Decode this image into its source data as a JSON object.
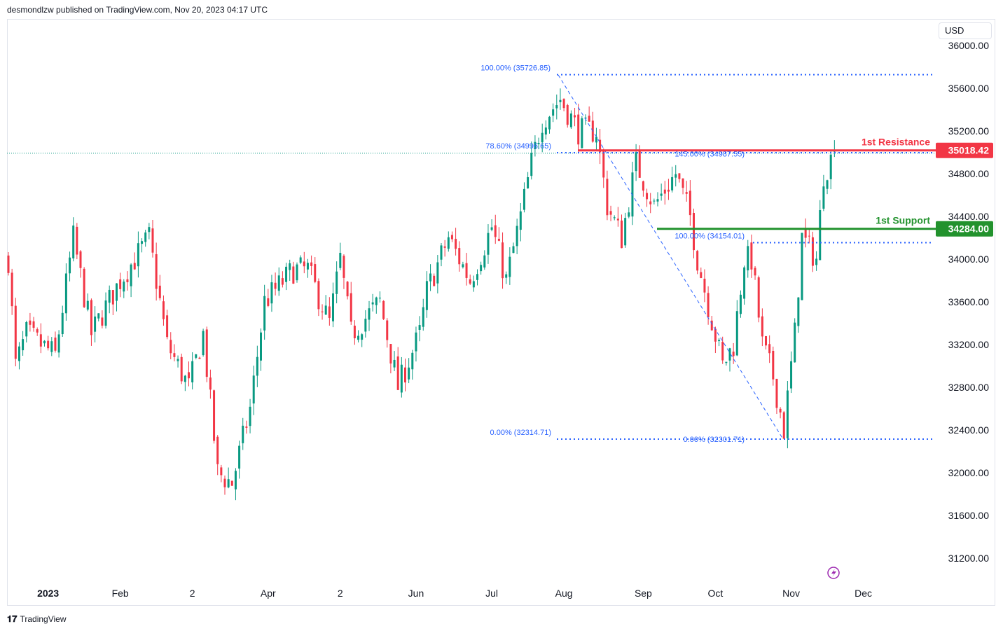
{
  "header": {
    "text": "desmondlzw published on TradingView.com, Nov 20, 2023 04:17 UTC"
  },
  "currency": "USD",
  "footer": {
    "brand": "TradingView"
  },
  "colors": {
    "up": "#089981",
    "down": "#f23645",
    "fib": "#2962ff",
    "resistance": "#f23645",
    "support": "#22922d",
    "last": "#089981"
  },
  "chart_data": {
    "type": "candlestick",
    "title": "",
    "ylim": [
      31200,
      36000
    ],
    "y_ticks": [
      "36000.00",
      "35600.00",
      "35200.00",
      "34800.00",
      "34400.00",
      "34000.00",
      "33600.00",
      "33200.00",
      "32800.00",
      "32400.00",
      "32000.00",
      "31600.00",
      "31200.00"
    ],
    "y_tick_values": [
      36000,
      35600,
      35200,
      34800,
      34400,
      34000,
      33600,
      33200,
      32800,
      32400,
      32000,
      31600,
      31200
    ],
    "x_ticks": [
      {
        "label": "2023",
        "day": 11,
        "bold": true
      },
      {
        "label": "Feb",
        "day": 31
      },
      {
        "label": "2",
        "day": 51
      },
      {
        "label": "Apr",
        "day": 72
      },
      {
        "label": "2",
        "day": 92
      },
      {
        "label": "Jun",
        "day": 113
      },
      {
        "label": "Jul",
        "day": 134
      },
      {
        "label": "Aug",
        "day": 154
      },
      {
        "label": "Sep",
        "day": 176
      },
      {
        "label": "Oct",
        "day": 196
      },
      {
        "label": "Nov",
        "day": 217
      },
      {
        "label": "Dec",
        "day": 237
      }
    ],
    "close_keypoints": [
      [
        0,
        34000
      ],
      [
        2,
        33000
      ],
      [
        5,
        33300
      ],
      [
        13,
        33100
      ],
      [
        18,
        34200
      ],
      [
        23,
        33300
      ],
      [
        31,
        33800
      ],
      [
        39,
        34200
      ],
      [
        44,
        33200
      ],
      [
        50,
        32800
      ],
      [
        54,
        33300
      ],
      [
        58,
        32000
      ],
      [
        62,
        31900
      ],
      [
        67,
        32600
      ],
      [
        71,
        33600
      ],
      [
        79,
        33900
      ],
      [
        83,
        33900
      ],
      [
        89,
        33400
      ],
      [
        92,
        34000
      ],
      [
        95,
        33300
      ],
      [
        103,
        33600
      ],
      [
        108,
        32800
      ],
      [
        114,
        33300
      ],
      [
        116,
        33700
      ],
      [
        122,
        34200
      ],
      [
        128,
        33800
      ],
      [
        134,
        34300
      ],
      [
        138,
        33800
      ],
      [
        142,
        34400
      ],
      [
        145,
        34900
      ],
      [
        148,
        35300
      ],
      [
        153,
        35500
      ],
      [
        158,
        35200
      ],
      [
        163,
        35200
      ],
      [
        166,
        34500
      ],
      [
        170,
        34200
      ],
      [
        174,
        34900
      ],
      [
        179,
        34500
      ],
      [
        185,
        34800
      ],
      [
        189,
        34400
      ],
      [
        191,
        34000
      ],
      [
        198,
        33000
      ],
      [
        201,
        33200
      ],
      [
        204,
        34000
      ],
      [
        206,
        34000
      ],
      [
        209,
        33200
      ],
      [
        212,
        32900
      ],
      [
        215,
        32400
      ],
      [
        218,
        33300
      ],
      [
        220,
        34200
      ],
      [
        224,
        34000
      ],
      [
        226,
        34800
      ],
      [
        229,
        35000
      ]
    ],
    "last_price": {
      "value": 35018.42,
      "label": "35018.42"
    },
    "levels": [
      {
        "name": "resistance",
        "label": "1st Resistance",
        "value": 35018.42,
        "tag": "35018.42"
      },
      {
        "name": "support",
        "label": "1st Support",
        "value": 34284.0,
        "tag": "34284.00"
      }
    ],
    "fib_labels": [
      {
        "text": "100.00% (35726.85)",
        "value": 35726.85
      },
      {
        "text": "78.60% (34996.65)",
        "value": 34996.65
      },
      {
        "text": "0.00% (32314.71)",
        "value": 32314.71
      },
      {
        "text": "145.00% (34987.55)",
        "value": 34987.55
      },
      {
        "text": "100.00% (34154.01)",
        "value": 34154.01
      },
      {
        "text": "0.00% (32301.71)",
        "value": 32301.71
      }
    ]
  }
}
